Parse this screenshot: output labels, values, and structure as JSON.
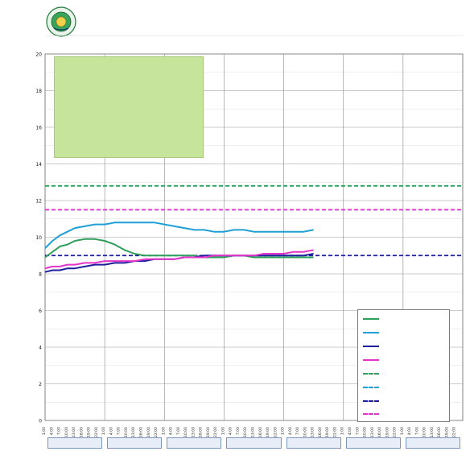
{
  "header": {
    "title": "",
    "subtitle_line1": "",
    "subtitle_line2": "",
    "logo_icon": "rid-seal-icon"
  },
  "footer": {
    "text": ""
  },
  "annotations": {
    "green_box": {
      "heading": "",
      "lines": [
        "",
        "",
        "",
        "",
        "",
        "",
        "",
        "",
        "",
        ""
      ]
    },
    "blue_top": {
      "lines": [
        "",
        "",
        ""
      ]
    },
    "pink_mid": {
      "lines": [
        "",
        "",
        ""
      ]
    },
    "green_right": {
      "lines": [
        "",
        "",
        ""
      ]
    },
    "pink_right": {
      "lines": [
        "",
        "",
        ""
      ]
    }
  },
  "chart_data": {
    "type": "line",
    "ylabel": "",
    "ylim": [
      0,
      20
    ],
    "yticks": [
      0,
      2,
      4,
      6,
      8,
      10,
      12,
      14,
      16,
      18,
      20
    ],
    "grid": true,
    "hours": [
      1,
      4,
      7,
      10,
      13,
      16,
      19,
      22
    ],
    "dates": [
      "",
      "",
      "",
      "",
      "",
      "",
      ""
    ],
    "colors": {
      "E32A": "#2e9f5a",
      "E5": "#1e9fd6",
      "E23": "#1c1e9c",
      "E21": "#e534c9"
    },
    "series": [
      {
        "name": "",
        "key": "E32A",
        "style": "solid",
        "x": [
          0,
          3,
          6,
          9,
          12,
          16,
          20,
          24,
          28,
          32,
          36,
          40,
          44,
          48,
          52,
          56,
          60,
          64,
          68,
          72,
          76,
          80,
          84,
          88,
          92,
          96,
          100,
          104,
          108
        ],
        "y": [
          8.9,
          9.2,
          9.5,
          9.6,
          9.8,
          9.9,
          9.9,
          9.8,
          9.6,
          9.3,
          9.1,
          9.0,
          9.0,
          9.0,
          9.0,
          9.0,
          9.0,
          8.9,
          8.9,
          8.9,
          9.0,
          9.0,
          8.9,
          8.9,
          8.9,
          8.9,
          8.9,
          8.9,
          8.9
        ]
      },
      {
        "name": "",
        "key": "E5",
        "style": "solid",
        "x": [
          0,
          3,
          6,
          9,
          12,
          16,
          20,
          24,
          28,
          32,
          36,
          40,
          44,
          48,
          52,
          56,
          60,
          64,
          68,
          72,
          76,
          80,
          84,
          88,
          92,
          96,
          100,
          104,
          108
        ],
        "y": [
          9.4,
          9.8,
          10.1,
          10.3,
          10.5,
          10.6,
          10.7,
          10.7,
          10.8,
          10.8,
          10.8,
          10.8,
          10.8,
          10.7,
          10.6,
          10.5,
          10.4,
          10.4,
          10.3,
          10.3,
          10.4,
          10.4,
          10.3,
          10.3,
          10.3,
          10.3,
          10.3,
          10.3,
          10.4
        ]
      },
      {
        "name": "",
        "key": "E23",
        "style": "solid",
        "x": [
          0,
          3,
          6,
          9,
          12,
          16,
          20,
          24,
          28,
          32,
          36,
          40,
          44,
          48,
          52,
          56,
          60,
          64,
          68,
          72,
          76,
          80,
          84,
          88,
          92,
          96,
          100,
          104,
          108
        ],
        "y": [
          8.1,
          8.2,
          8.2,
          8.3,
          8.3,
          8.4,
          8.5,
          8.5,
          8.6,
          8.6,
          8.7,
          8.7,
          8.8,
          8.8,
          8.8,
          8.9,
          8.9,
          9.0,
          9.0,
          9.0,
          9.0,
          9.0,
          9.0,
          9.0,
          9.0,
          9.0,
          9.0,
          9.0,
          9.1
        ]
      },
      {
        "name": "",
        "key": "E21",
        "style": "solid",
        "x": [
          0,
          3,
          6,
          9,
          12,
          16,
          20,
          24,
          28,
          32,
          36,
          40,
          44,
          48,
          52,
          56,
          60,
          64,
          68,
          72,
          76,
          80,
          84,
          88,
          92,
          96,
          100,
          104,
          108
        ],
        "y": [
          8.3,
          8.4,
          8.4,
          8.5,
          8.5,
          8.6,
          8.6,
          8.7,
          8.7,
          8.7,
          8.7,
          8.8,
          8.8,
          8.8,
          8.8,
          8.9,
          8.9,
          8.9,
          9.0,
          9.0,
          9.0,
          9.0,
          9.0,
          9.1,
          9.1,
          9.1,
          9.2,
          9.2,
          9.3
        ]
      }
    ],
    "thresholds": [
      {
        "name": "",
        "key": "E32A",
        "value": 12.8,
        "color": "#2e9f5a"
      },
      {
        "name": "",
        "key": "E5",
        "value": 11.5,
        "color": "#1e9fd6"
      },
      {
        "name": "",
        "key": "E23",
        "value": 9.0,
        "color": "#1c1e9c"
      },
      {
        "name": "",
        "key": "E21",
        "value": 11.5,
        "color": "#e534c9"
      }
    ],
    "legend_labels": [
      "",
      "",
      "",
      "",
      "",
      "",
      "",
      ""
    ]
  }
}
